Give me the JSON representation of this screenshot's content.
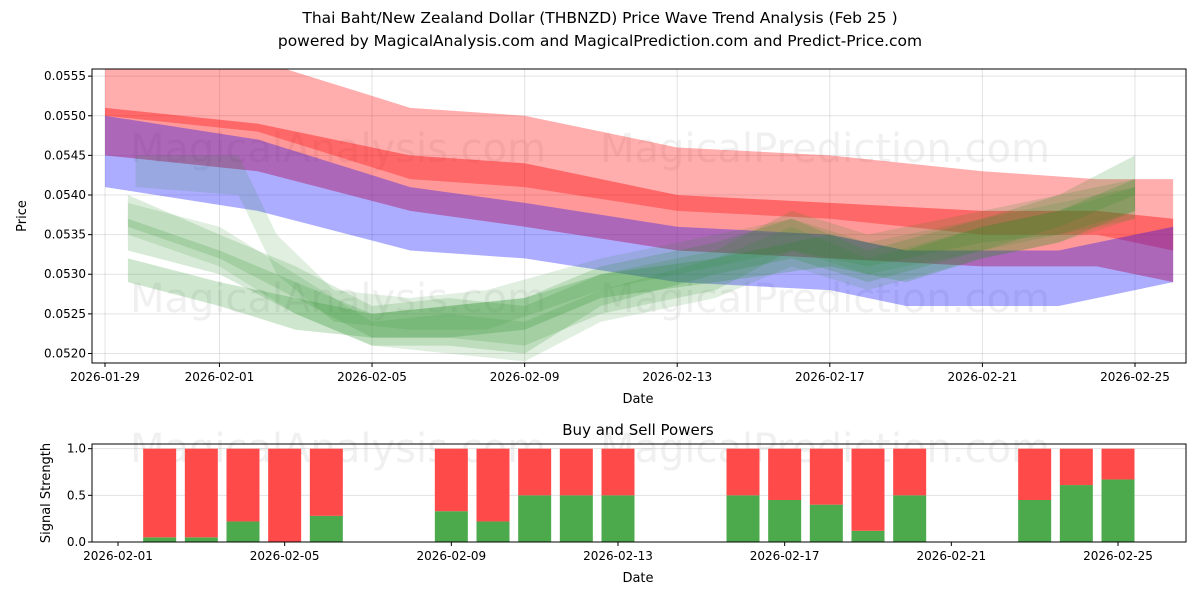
{
  "title_line1": "Thai Baht/New Zealand Dollar (THBNZD) Price Wave Trend Analysis (Feb 25 )",
  "title_line2": "powered by MagicalAnalysis.com and MagicalPrediction.com and Predict-Price.com",
  "watermarks": [
    "MagicalAnalysis.com",
    "MagicalPrediction.com"
  ],
  "chart_data": [
    {
      "type": "area",
      "title": "",
      "xlabel": "Date",
      "ylabel": "Price",
      "x_start": "2026-01-29",
      "xlim_days": [
        -0.3,
        28.3
      ],
      "ylim": [
        0.05188,
        0.05559
      ],
      "yticks": [
        "0.0520",
        "0.0525",
        "0.0530",
        "0.0535",
        "0.0540",
        "0.0545",
        "0.0550",
        "0.0555"
      ],
      "ytick_values": [
        0.052,
        0.0525,
        0.053,
        0.0535,
        0.054,
        0.0545,
        0.055,
        0.0555
      ],
      "xticks": [
        "2026-01-29",
        "2026-02-01",
        "2026-02-05",
        "2026-02-09",
        "2026-02-13",
        "2026-02-17",
        "2026-02-21",
        "2026-02-25"
      ],
      "xtick_days": [
        0,
        3,
        7,
        11,
        15,
        19,
        23,
        27
      ],
      "grid": true,
      "bands": [
        {
          "color": "#ff0000",
          "opacity": 0.32,
          "days": [
            0,
            4,
            8,
            11,
            15,
            19,
            23,
            26,
            28
          ],
          "upper": [
            0.0558,
            0.0557,
            0.0551,
            0.055,
            0.0546,
            0.0545,
            0.0543,
            0.0542,
            0.0542
          ],
          "lower": [
            0.055,
            0.0548,
            0.0542,
            0.0541,
            0.0538,
            0.0537,
            0.0535,
            0.0535,
            0.0533
          ]
        },
        {
          "color": "#ff0000",
          "opacity": 0.4,
          "days": [
            0,
            4,
            8,
            11,
            15,
            19,
            23,
            26,
            28
          ],
          "upper": [
            0.0551,
            0.0549,
            0.0545,
            0.0544,
            0.054,
            0.0539,
            0.0538,
            0.0538,
            0.0537
          ],
          "lower": [
            0.0545,
            0.0543,
            0.0538,
            0.0536,
            0.0533,
            0.0532,
            0.0531,
            0.0531,
            0.0529
          ]
        },
        {
          "color": "#0000ff",
          "opacity": 0.32,
          "days": [
            0,
            4,
            8,
            11,
            15,
            19,
            21,
            25,
            28
          ],
          "upper": [
            0.055,
            0.0547,
            0.0541,
            0.0539,
            0.0536,
            0.0535,
            0.0533,
            0.0533,
            0.0536
          ],
          "lower": [
            0.0541,
            0.0538,
            0.0533,
            0.0532,
            0.0529,
            0.0528,
            0.0526,
            0.0526,
            0.0529
          ]
        },
        {
          "color": "#228b22",
          "opacity": 0.22,
          "days": [
            0.6,
            3,
            5,
            7,
            9,
            11,
            13,
            16,
            19,
            21,
            23,
            25,
            27
          ],
          "upper": [
            0.0532,
            0.0529,
            0.0527,
            0.0525,
            0.0526,
            0.0527,
            0.053,
            0.0532,
            0.0535,
            0.0533,
            0.0536,
            0.0538,
            0.0542
          ],
          "lower": [
            0.0529,
            0.0526,
            0.0523,
            0.0522,
            0.0522,
            0.0523,
            0.0527,
            0.0529,
            0.0531,
            0.0529,
            0.0532,
            0.0534,
            0.0538
          ]
        },
        {
          "color": "#228b22",
          "opacity": 0.18,
          "days": [
            0.6,
            3,
            5,
            7,
            9,
            11,
            13,
            16,
            18,
            20,
            23,
            25,
            27
          ],
          "upper": [
            0.0537,
            0.0533,
            0.0529,
            0.0525,
            0.0526,
            0.0527,
            0.0531,
            0.0534,
            0.0537,
            0.0533,
            0.0537,
            0.054,
            0.0545
          ],
          "lower": [
            0.0533,
            0.053,
            0.0525,
            0.0521,
            0.0521,
            0.052,
            0.0526,
            0.053,
            0.0532,
            0.0529,
            0.0533,
            0.0536,
            0.054
          ]
        },
        {
          "color": "#228b22",
          "opacity": 0.16,
          "days": [
            0.6,
            3,
            5,
            7,
            9,
            11,
            13,
            16,
            18,
            20,
            23,
            25,
            27
          ],
          "upper": [
            0.054,
            0.0535,
            0.0531,
            0.0526,
            0.0527,
            0.0526,
            0.053,
            0.0533,
            0.0538,
            0.0535,
            0.0538,
            0.054,
            0.0542
          ],
          "lower": [
            0.0536,
            0.0532,
            0.0527,
            0.0522,
            0.0522,
            0.0521,
            0.0525,
            0.0528,
            0.0533,
            0.0531,
            0.0534,
            0.0535,
            0.0538
          ]
        },
        {
          "color": "#228b22",
          "opacity": 0.14,
          "days": [
            0.6,
            3,
            5,
            7,
            9,
            11,
            13,
            16,
            18,
            20,
            23,
            25,
            27
          ],
          "upper": [
            0.0539,
            0.0536,
            0.053,
            0.0524,
            0.0525,
            0.0524,
            0.0528,
            0.0532,
            0.0536,
            0.0532,
            0.0536,
            0.0538,
            0.0541
          ],
          "lower": [
            0.0535,
            0.0531,
            0.0525,
            0.0521,
            0.052,
            0.0519,
            0.0524,
            0.0527,
            0.0531,
            0.0528,
            0.0532,
            0.0534,
            0.0537
          ]
        },
        {
          "color": "#228b22",
          "opacity": 0.14,
          "days": [
            0.8,
            3.5,
            4.5,
            6,
            8,
            10,
            13,
            16,
            18,
            20,
            23,
            25,
            27
          ],
          "upper": [
            0.0545,
            0.0545,
            0.0535,
            0.0528,
            0.0527,
            0.0528,
            0.0532,
            0.0535,
            0.0537,
            0.0534,
            0.0537,
            0.0539,
            0.0541
          ],
          "lower": [
            0.0541,
            0.054,
            0.053,
            0.0524,
            0.0523,
            0.0523,
            0.0528,
            0.0531,
            0.0533,
            0.053,
            0.0533,
            0.0535,
            0.0537
          ]
        }
      ]
    },
    {
      "type": "bar",
      "title": "Buy and Sell Powers",
      "xlabel": "Date",
      "ylabel": "Signal Strength",
      "x_start": "2026-02-01",
      "ylim": [
        0,
        1.05
      ],
      "yticks": [
        "0.0",
        "0.5",
        "1.0"
      ],
      "ytick_values": [
        0,
        0.5,
        1.0
      ],
      "xticks": [
        "2026-02-01",
        "2026-02-05",
        "2026-02-09",
        "2026-02-13",
        "2026-02-17",
        "2026-02-21",
        "2026-02-25"
      ],
      "xtick_days": [
        0,
        4,
        8,
        12,
        16,
        20,
        24
      ],
      "categories": [
        "2026-02-02",
        "2026-02-03",
        "2026-02-04",
        "2026-02-05",
        "2026-02-06",
        "2026-02-09",
        "2026-02-10",
        "2026-02-11",
        "2026-02-12",
        "2026-02-13",
        "2026-02-16",
        "2026-02-17",
        "2026-02-18",
        "2026-02-19",
        "2026-02-20",
        "2026-02-23",
        "2026-02-24",
        "2026-02-25"
      ],
      "category_days": [
        1,
        2,
        3,
        4,
        5,
        8,
        9,
        10,
        11,
        12,
        15,
        16,
        17,
        18,
        19,
        22,
        23,
        24
      ],
      "series": [
        {
          "name": "Buy",
          "color": "#4caa4c",
          "values": [
            0.05,
            0.05,
            0.22,
            0.0,
            0.28,
            0.33,
            0.22,
            0.5,
            0.5,
            0.5,
            0.5,
            0.45,
            0.4,
            0.12,
            0.5,
            0.45,
            0.61,
            0.67
          ]
        },
        {
          "name": "Sell",
          "color": "#ff4a4a",
          "values": [
            0.95,
            0.95,
            0.78,
            1.0,
            0.72,
            0.67,
            0.78,
            0.5,
            0.5,
            0.5,
            0.5,
            0.55,
            0.6,
            0.88,
            0.5,
            0.55,
            0.39,
            0.33
          ]
        }
      ]
    }
  ]
}
